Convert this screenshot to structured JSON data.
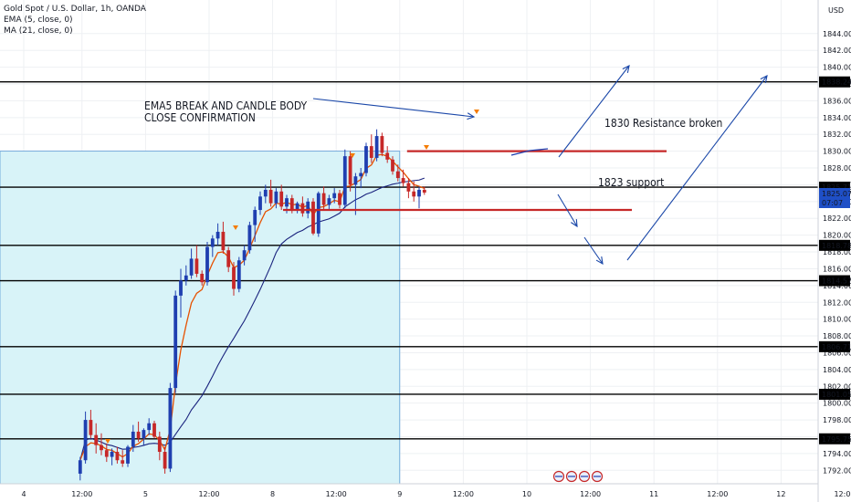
{
  "legend": {
    "symbol": "Gold Spot / U.S. Dollar, 1h, OANDA",
    "ema": "EMA (5, close, 0)",
    "ma": "MA (21, close, 0)"
  },
  "currency": "USD",
  "price_label": {
    "value": "1825.070",
    "countdown": "07:07"
  },
  "chart_data": {
    "type": "candlestick",
    "title": "Gold Spot / U.S. Dollar, 1h, OANDA",
    "ylim": [
      1790.4,
      1848.0
    ],
    "y_ticks": [
      "1792.000",
      "1794.000",
      "1796.000",
      "1798.000",
      "1800.000",
      "1802.000",
      "1804.000",
      "1806.000",
      "1808.000",
      "1810.000",
      "1812.000",
      "1814.000",
      "1816.000",
      "1818.000",
      "1820.000",
      "1822.000",
      "1824.000",
      "1826.000",
      "1828.000",
      "1830.000",
      "1832.000",
      "1834.000",
      "1836.000",
      "1838.000",
      "1840.000",
      "1842.000",
      "1844.000"
    ],
    "x_ticks": [
      {
        "t": 0,
        "label": "4"
      },
      {
        "t": 11,
        "label": "12:00"
      },
      {
        "t": 23,
        "label": "5"
      },
      {
        "t": 35,
        "label": "12:00"
      },
      {
        "t": 47,
        "label": "8"
      },
      {
        "t": 59,
        "label": "12:00"
      },
      {
        "t": 71,
        "label": "9"
      },
      {
        "t": 83,
        "label": "12:00"
      },
      {
        "t": 95,
        "label": "10"
      },
      {
        "t": 107,
        "label": "12:00"
      },
      {
        "t": 119,
        "label": "11"
      },
      {
        "t": 131,
        "label": "12:00"
      },
      {
        "t": 143,
        "label": "12"
      },
      {
        "t": 155,
        "label": "12:00"
      }
    ],
    "candles": [
      [
        1791.6,
        1793.6,
        1790.8,
        1793.2
      ],
      [
        1793.2,
        1799.0,
        1792.8,
        1798.0
      ],
      [
        1798.0,
        1799.2,
        1795.8,
        1796.2
      ],
      [
        1796.2,
        1797.6,
        1794.0,
        1795.0
      ],
      [
        1795.0,
        1796.4,
        1793.8,
        1794.4
      ],
      [
        1794.4,
        1795.2,
        1793.0,
        1793.6
      ],
      [
        1793.6,
        1794.6,
        1792.6,
        1794.2
      ],
      [
        1794.2,
        1794.8,
        1792.8,
        1793.2
      ],
      [
        1793.2,
        1794.4,
        1792.4,
        1792.8
      ],
      [
        1792.8,
        1795.0,
        1792.4,
        1794.8
      ],
      [
        1794.8,
        1797.4,
        1794.2,
        1796.6
      ],
      [
        1796.6,
        1797.8,
        1795.4,
        1795.8
      ],
      [
        1795.8,
        1797.0,
        1795.0,
        1796.8
      ],
      [
        1796.8,
        1798.2,
        1796.2,
        1797.6
      ],
      [
        1797.6,
        1797.9,
        1795.8,
        1796.0
      ],
      [
        1796.0,
        1796.6,
        1793.2,
        1794.2
      ],
      [
        1794.2,
        1794.8,
        1791.6,
        1792.2
      ],
      [
        1792.2,
        1802.4,
        1791.8,
        1801.8
      ],
      [
        1801.8,
        1813.4,
        1801.2,
        1812.8
      ],
      [
        1812.8,
        1816.0,
        1810.2,
        1814.6
      ],
      [
        1814.6,
        1816.4,
        1814.0,
        1815.2
      ],
      [
        1815.2,
        1818.4,
        1814.8,
        1817.2
      ],
      [
        1817.2,
        1818.8,
        1815.0,
        1815.4
      ],
      [
        1815.4,
        1815.8,
        1814.0,
        1814.4
      ],
      [
        1814.4,
        1819.2,
        1814.0,
        1818.6
      ],
      [
        1818.6,
        1820.0,
        1817.4,
        1819.6
      ],
      [
        1819.6,
        1821.4,
        1818.8,
        1820.4
      ],
      [
        1820.4,
        1821.6,
        1817.8,
        1818.2
      ],
      [
        1818.2,
        1818.6,
        1815.6,
        1816.2
      ],
      [
        1816.2,
        1816.8,
        1812.8,
        1813.6
      ],
      [
        1813.6,
        1817.4,
        1813.2,
        1817.0
      ],
      [
        1817.0,
        1818.8,
        1816.4,
        1818.2
      ],
      [
        1818.2,
        1821.6,
        1817.8,
        1821.2
      ],
      [
        1821.2,
        1823.4,
        1819.2,
        1823.0
      ],
      [
        1823.0,
        1825.2,
        1822.4,
        1824.6
      ],
      [
        1824.6,
        1826.0,
        1823.8,
        1825.4
      ],
      [
        1825.4,
        1826.6,
        1823.4,
        1823.8
      ],
      [
        1823.8,
        1825.6,
        1823.2,
        1825.2
      ],
      [
        1825.2,
        1826.0,
        1823.0,
        1823.4
      ],
      [
        1823.4,
        1824.8,
        1822.6,
        1824.4
      ],
      [
        1824.4,
        1824.8,
        1822.6,
        1823.0
      ],
      [
        1823.0,
        1824.0,
        1822.6,
        1823.8
      ],
      [
        1823.8,
        1824.6,
        1822.2,
        1822.6
      ],
      [
        1822.6,
        1824.4,
        1822.0,
        1824.0
      ],
      [
        1824.0,
        1824.4,
        1820.0,
        1820.2
      ],
      [
        1820.2,
        1825.2,
        1819.8,
        1825.0
      ],
      [
        1825.0,
        1825.8,
        1823.0,
        1823.6
      ],
      [
        1823.6,
        1824.8,
        1823.0,
        1824.4
      ],
      [
        1824.4,
        1825.6,
        1823.8,
        1825.0
      ],
      [
        1825.0,
        1825.4,
        1823.2,
        1823.6
      ],
      [
        1823.6,
        1830.2,
        1823.2,
        1829.4
      ],
      [
        1829.4,
        1830.0,
        1825.2,
        1826.0
      ],
      [
        1826.0,
        1827.4,
        1822.4,
        1827.0
      ],
      [
        1827.0,
        1828.0,
        1825.6,
        1827.4
      ],
      [
        1827.4,
        1831.0,
        1827.0,
        1830.6
      ],
      [
        1830.6,
        1832.0,
        1828.6,
        1829.2
      ],
      [
        1829.2,
        1832.6,
        1828.8,
        1831.8
      ],
      [
        1831.8,
        1832.2,
        1829.4,
        1829.8
      ],
      [
        1829.8,
        1830.6,
        1828.6,
        1829.0
      ],
      [
        1829.0,
        1829.4,
        1827.2,
        1827.6
      ],
      [
        1827.6,
        1828.4,
        1826.4,
        1826.8
      ],
      [
        1826.8,
        1827.8,
        1825.8,
        1826.2
      ],
      [
        1826.2,
        1826.8,
        1824.4,
        1825.2
      ],
      [
        1825.2,
        1826.4,
        1824.0,
        1824.6
      ],
      [
        1824.6,
        1825.8,
        1823.2,
        1825.4
      ],
      [
        1825.4,
        1825.8,
        1824.8,
        1825.07
      ]
    ],
    "horizontal_lines": [
      {
        "price": 1838.248,
        "label": "1838.248"
      },
      {
        "price": 1825.714,
        "label": "1825.714"
      },
      {
        "price": 1818.786,
        "label": "1818.786"
      },
      {
        "price": 1814.578,
        "label": "1814.578"
      },
      {
        "price": 1806.717,
        "label": "1806.717"
      },
      {
        "price": 1801.053,
        "label": "1801.053"
      },
      {
        "price": 1795.751,
        "label": "1795.751"
      }
    ],
    "annotations": [
      {
        "line1": "EMA5 BREAK AND CANDLE BODY",
        "line2": "CLOSE CONFIRMATION"
      },
      {
        "text": "1830 Resistance broken",
        "level": 1830.0
      },
      {
        "text": "1823 support",
        "level": 1823.0
      }
    ],
    "colors": {
      "up": "#1f3fb0",
      "down": "#c62828",
      "ema": "#e65100",
      "ma": "#1a237e",
      "shade": "#d8f3f8",
      "resistance": "#c62828"
    }
  }
}
